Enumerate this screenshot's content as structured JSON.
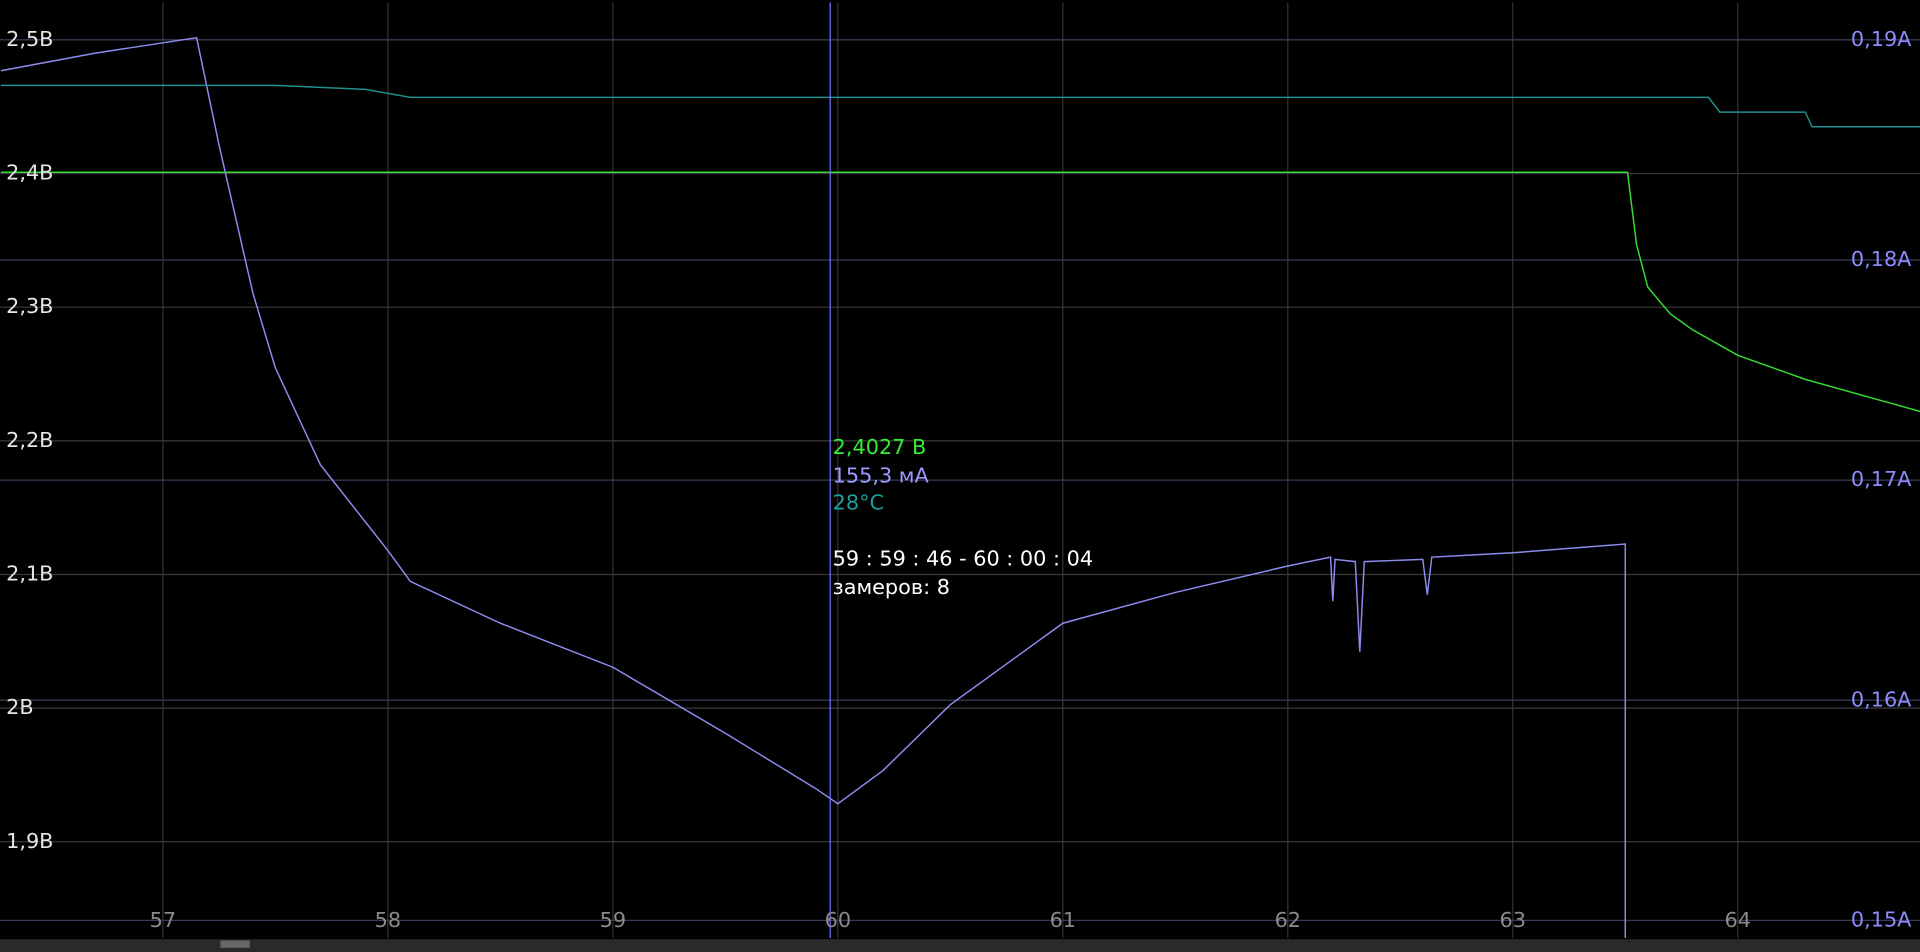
{
  "chart_data": {
    "type": "line",
    "xlim": [
      56.276,
      64.81
    ],
    "xticks": [
      57,
      58,
      59,
      60,
      61,
      62,
      63,
      64
    ],
    "ylim": [
      1.828,
      2.528
    ],
    "yticks": [
      {
        "value": 1.9,
        "label": "1,9В"
      },
      {
        "value": 2.0,
        "label": "2В"
      },
      {
        "value": 2.1,
        "label": "2,1В"
      },
      {
        "value": 2.2,
        "label": "2,2В"
      },
      {
        "value": 2.3,
        "label": "2,3В"
      },
      {
        "value": 2.4,
        "label": "2,4В"
      },
      {
        "value": 2.5,
        "label": "2,5В"
      }
    ],
    "y2lim": [
      0.1492,
      0.1917
    ],
    "y2ticks": [
      {
        "value": 0.15,
        "label": "0,15А"
      },
      {
        "value": 0.16,
        "label": "0,16А"
      },
      {
        "value": 0.17,
        "label": "0,17А"
      },
      {
        "value": 0.18,
        "label": "0,18А"
      },
      {
        "value": 0.19,
        "label": "0,19А"
      }
    ],
    "grid": true,
    "series": [
      {
        "color": "#33dd33",
        "axis": "y",
        "x": [
          56.28,
          63.51,
          63.55,
          63.6,
          63.7,
          63.8,
          64.0,
          64.3,
          64.81
        ],
        "values": [
          2.401,
          2.401,
          2.347,
          2.315,
          2.295,
          2.283,
          2.264,
          2.246,
          2.222
        ]
      },
      {
        "color": "#8c8cf0",
        "axis": "y2",
        "x": [
          56.28,
          56.7,
          57.15,
          57.25,
          57.4,
          57.5,
          57.7,
          58.0,
          58.1,
          58.5,
          59.0,
          59.5,
          59.9,
          60.0,
          60.2,
          60.5,
          61.0,
          61.5,
          62.0,
          62.19,
          62.2,
          62.21,
          62.3,
          62.32,
          62.34,
          62.6,
          62.62,
          62.64,
          63.0,
          63.5,
          63.5
        ],
        "values": [
          0.1886,
          0.1894,
          0.1901,
          0.1852,
          0.1785,
          0.1751,
          0.1707,
          0.1668,
          0.1654,
          0.1635,
          0.1615,
          0.1585,
          0.156,
          0.1553,
          0.1568,
          0.1598,
          0.1635,
          0.1649,
          0.1661,
          0.1665,
          0.1645,
          0.1664,
          0.1663,
          0.1622,
          0.1663,
          0.1664,
          0.1648,
          0.1665,
          0.1667,
          0.1671,
          0.149
        ]
      },
      {
        "color": "#1f8f8f",
        "axis": "y",
        "x": [
          56.28,
          57.5,
          57.9,
          58.1,
          59.0,
          63.87,
          63.92,
          64.3,
          64.33,
          64.81
        ],
        "values": [
          2.466,
          2.466,
          2.463,
          2.457,
          2.457,
          2.457,
          2.446,
          2.446,
          2.435,
          2.435
        ]
      }
    ],
    "readout": {
      "voltage": "2,4027 В",
      "current": "155,3 мА",
      "temperature": "28°С",
      "interval": "59 : 59 : 46 - 60 : 00 : 04",
      "count": "замеров: 8"
    }
  }
}
